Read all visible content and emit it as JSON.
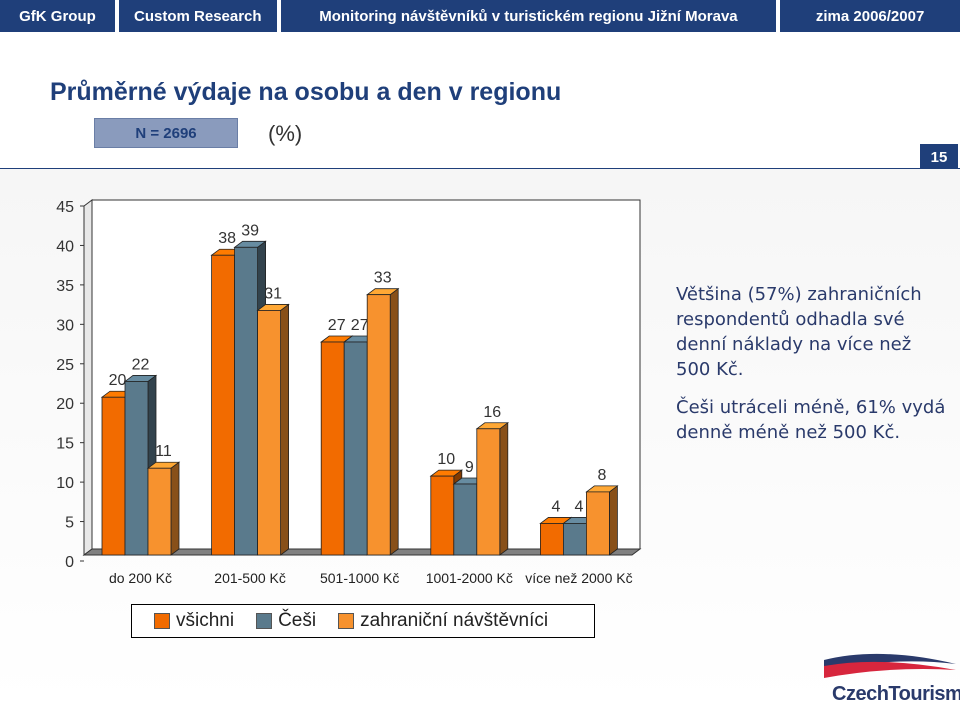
{
  "header": {
    "company": "GfK Group",
    "division": "Custom Research",
    "project": "Monitoring návštěvníků v turistickém regionu Jižní Morava",
    "season": "zima 2006/2007"
  },
  "title": "Průměrné výdaje na osobu a den v regionu",
  "sample": "N = 2696",
  "unit": "(%)",
  "page_number": "15",
  "side_text": {
    "p1": "Většina (57%) zahraničních respondentů odhadla své denní náklady na více než 500 Kč.",
    "p2": "Češi utráceli méně, 61% vydá denně méně než 500 Kč."
  },
  "logo": {
    "text": "CzechTourism"
  },
  "colors": {
    "vsichni": "#f26b00",
    "cesi": "#5a7a8c",
    "zahranicni": "#f7922e"
  },
  "chart_data": {
    "type": "bar",
    "categories": [
      "do 200 Kč",
      "201-500 Kč",
      "501-1000 Kč",
      "1001-2000 Kč",
      "více než 2000 Kč"
    ],
    "series": [
      {
        "name": "všichni",
        "values": [
          20,
          38,
          27,
          10,
          4
        ]
      },
      {
        "name": "Češi",
        "values": [
          22,
          39,
          27,
          9,
          4
        ]
      },
      {
        "name": "zahraniční návštěvníci",
        "values": [
          11,
          31,
          33,
          16,
          8
        ]
      }
    ],
    "ylim": [
      0,
      45
    ],
    "yticks": [
      0,
      5,
      10,
      15,
      20,
      25,
      30,
      35,
      40,
      45
    ],
    "style": "3d",
    "legend_position": "bottom"
  }
}
